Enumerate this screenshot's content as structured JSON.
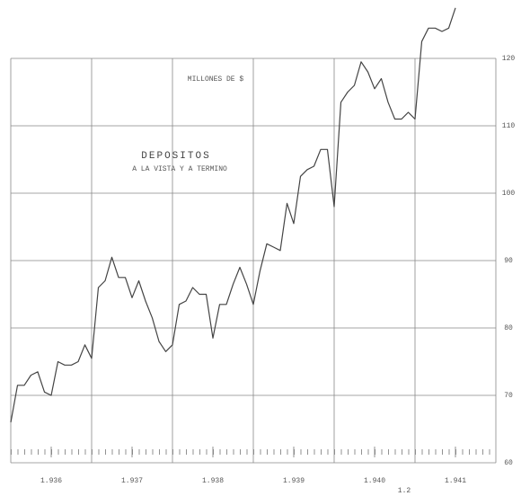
{
  "chart_data": {
    "type": "line",
    "title": "DEPOSITOS",
    "subtitle": "A LA VISTA Y A TERMINO",
    "y_label": "MILLONES DE $",
    "annotation": "1.2",
    "x": [
      0,
      1,
      2,
      3,
      4,
      5,
      6,
      7,
      8,
      9,
      10,
      11,
      12,
      13,
      14,
      15,
      16,
      17,
      18,
      19,
      20,
      21,
      22,
      23,
      24,
      25,
      26,
      27,
      28,
      29,
      30,
      31,
      32,
      33,
      34,
      35,
      36,
      37,
      38,
      39,
      40,
      41,
      42,
      43,
      44,
      45,
      46,
      47,
      48,
      49,
      50,
      51,
      52,
      53,
      54,
      55,
      56,
      57,
      58,
      59,
      60,
      61,
      62,
      63,
      64,
      65,
      66
    ],
    "values": [
      66,
      71.5,
      71.5,
      73,
      73.5,
      70.5,
      70,
      75,
      74.5,
      74.5,
      75,
      77.5,
      75.5,
      86,
      87,
      90.5,
      87.5,
      87.5,
      84.5,
      87,
      84,
      81.5,
      78,
      76.5,
      77.5,
      83.5,
      84,
      86,
      85,
      85,
      78.5,
      83.5,
      83.5,
      86.5,
      89,
      86.5,
      83.5,
      88.5,
      92.5,
      92,
      91.5,
      98.5,
      95.5,
      102.5,
      103.5,
      104,
      106.5,
      106.5,
      98,
      113.5,
      115,
      116,
      119.5,
      118,
      115.5,
      117,
      113.5,
      111,
      111,
      112,
      111,
      122.5,
      124.5,
      124.5,
      124,
      124.5,
      127.5
    ],
    "color": "#444444",
    "xlim": [
      0,
      72
    ],
    "xticks": [
      {
        "value": 6,
        "label": "1.936"
      },
      {
        "value": 18,
        "label": "1.937"
      },
      {
        "value": 30,
        "label": "1.938"
      },
      {
        "value": 42,
        "label": "1.939"
      },
      {
        "value": 54,
        "label": "1.940"
      },
      {
        "value": 66,
        "label": "1.941"
      }
    ],
    "xgrid": [
      0,
      12,
      24,
      36,
      48,
      60,
      72
    ],
    "ylim": [
      60,
      120
    ],
    "yticks": [
      60,
      70,
      80,
      90,
      100,
      110,
      120
    ],
    "y_axis_side": "right",
    "grid": true
  }
}
